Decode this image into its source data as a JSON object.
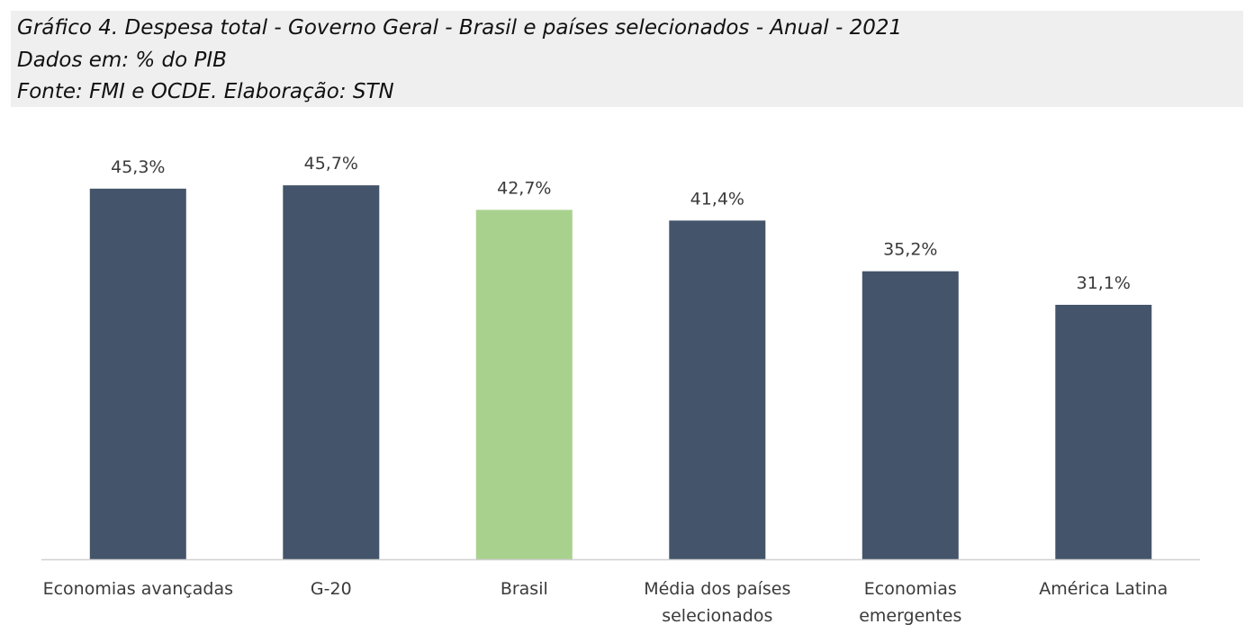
{
  "header": {
    "title": "Gráfico 4. Despesa total - Governo Geral - Brasil e países selecionados - Anual - 2021",
    "units": "Dados em: % do PIB",
    "source": "Fonte: FMI e OCDE. Elaboração: STN"
  },
  "colors": {
    "default_bar": "#44546a",
    "highlight_bar": "#a9d18e",
    "axis": "#d0d0d0"
  },
  "chart_data": {
    "type": "bar",
    "title": "Gráfico 4. Despesa total - Governo Geral - Brasil e países selecionados - Anual - 2021",
    "categories": [
      [
        "Economias avançadas"
      ],
      [
        "G-20"
      ],
      [
        "Brasil"
      ],
      [
        "Média dos países",
        "selecionados"
      ],
      [
        "Economias",
        "emergentes"
      ],
      [
        "América Latina"
      ]
    ],
    "values": [
      45.3,
      45.7,
      42.7,
      41.4,
      35.2,
      31.1
    ],
    "data_labels": [
      "45,3%",
      "45,7%",
      "42,7%",
      "41,4%",
      "35,2%",
      "31,1%"
    ],
    "highlight": [
      "Brasil"
    ],
    "ylim": [
      0,
      50
    ],
    "grid": false,
    "legend": "none"
  }
}
